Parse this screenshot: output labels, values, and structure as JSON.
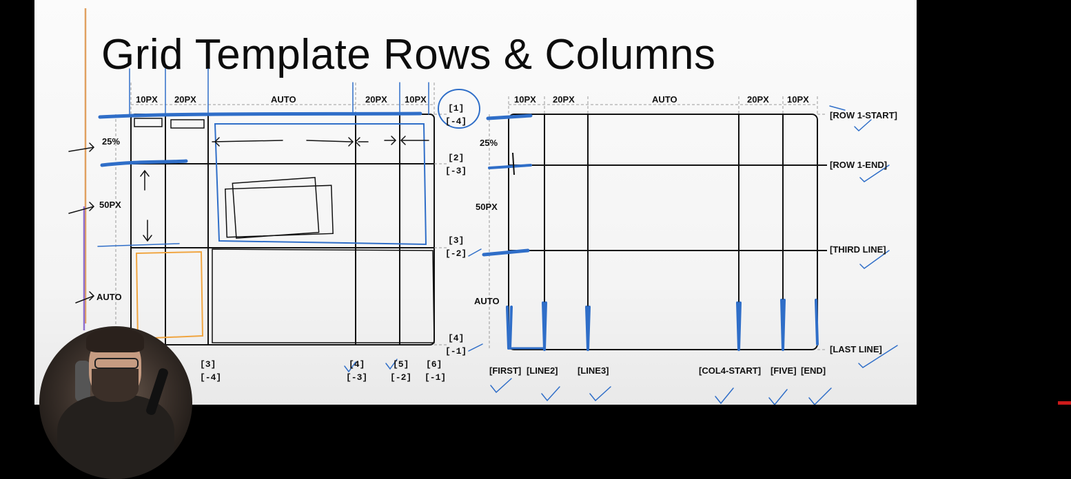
{
  "slide": {
    "title": "Grid Template Rows & Columns"
  },
  "left_grid": {
    "column_sizes": [
      "10PX",
      "20PX",
      "AUTO",
      "20PX",
      "10PX"
    ],
    "row_sizes": [
      "25%",
      "50PX",
      "AUTO"
    ],
    "row_line_numbers": [
      {
        "pos": "[1]",
        "neg": "[-4]"
      },
      {
        "pos": "[2]",
        "neg": "[-3]"
      },
      {
        "pos": "[3]",
        "neg": "[-2]"
      },
      {
        "pos": "[4]",
        "neg": "[-1]"
      }
    ],
    "column_line_numbers": [
      {
        "pos": "[3]",
        "neg": "[-4]"
      },
      {
        "pos": "[4]",
        "neg": "[-3]"
      },
      {
        "pos": "[5]",
        "neg": "[-2]"
      },
      {
        "pos": "[6]",
        "neg": "[-1]"
      }
    ]
  },
  "right_grid": {
    "column_sizes": [
      "10PX",
      "20PX",
      "AUTO",
      "20PX",
      "10PX"
    ],
    "row_sizes": [
      "25%",
      "50PX",
      "AUTO"
    ],
    "row_line_names": [
      "[ROW 1-START]",
      "[ROW 1-END]",
      "[THIRD LINE]",
      "[LAST LINE]"
    ],
    "column_line_names": [
      "[FIRST]",
      "[LINE2]",
      "[LINE3]",
      "[COL4-START]",
      "[FIVE]",
      "[END]"
    ]
  },
  "colors": {
    "slide_bg": "#f7f7f7",
    "ink": "#111111",
    "pen_blue": "#2f6ec8",
    "pen_orange": "#f0a540",
    "margin_line": "#e0a060",
    "margin_line_purple": "#8f6fcf"
  },
  "presenter_overlay": "webcam"
}
